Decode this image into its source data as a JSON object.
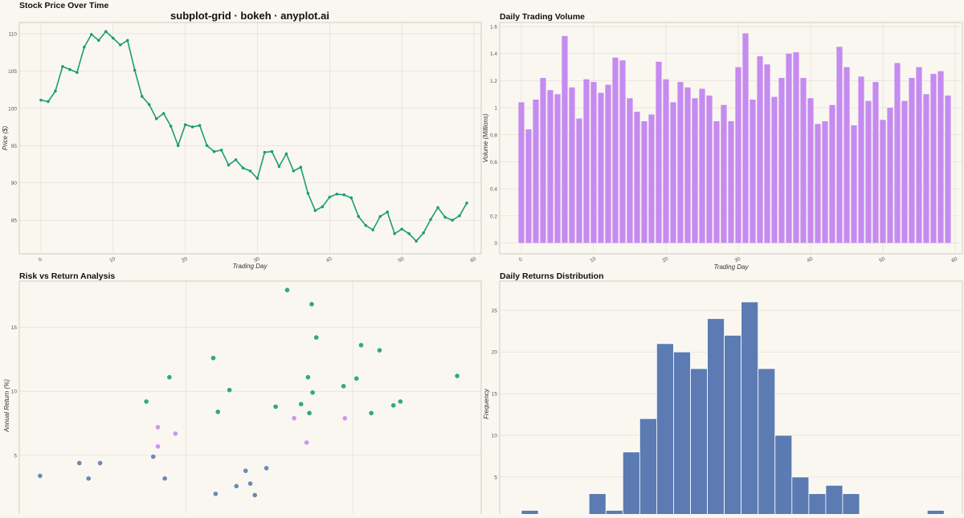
{
  "suptitle": "subplot-grid · bokeh · anyplot.ai",
  "colors": {
    "primary": "#1a9e76",
    "secondary": "#c58bf0",
    "tertiary": "#5b7bb2",
    "background": "#faf7f0"
  },
  "chart_data": [
    {
      "type": "line",
      "title": "Stock Price Over Time",
      "xlabel": "Trading Day",
      "ylabel": "Price ($)",
      "xlim": [
        -3,
        61
      ],
      "ylim": [
        80.5,
        111.5
      ],
      "xticks": [
        0,
        10,
        20,
        30,
        40,
        50,
        60
      ],
      "yticks": [
        85,
        90,
        95,
        100,
        105,
        110
      ],
      "x": [
        0,
        1,
        2,
        3,
        4,
        5,
        6,
        7,
        8,
        9,
        10,
        11,
        12,
        13,
        14,
        15,
        16,
        17,
        18,
        19,
        20,
        21,
        22,
        23,
        24,
        25,
        26,
        27,
        28,
        29,
        30,
        31,
        32,
        33,
        34,
        35,
        36,
        37,
        38,
        39,
        40,
        41,
        42,
        43,
        44,
        45,
        46,
        47,
        48,
        49,
        50,
        51,
        52,
        53,
        54,
        55,
        56,
        57,
        58,
        59
      ],
      "y": [
        101.1,
        100.9,
        102.3,
        105.6,
        105.2,
        104.8,
        108.2,
        109.9,
        109.1,
        110.3,
        109.4,
        108.5,
        109.1,
        105.1,
        101.6,
        100.5,
        98.6,
        99.3,
        97.6,
        95.0,
        97.8,
        97.5,
        97.7,
        95.0,
        94.2,
        94.4,
        92.4,
        93.1,
        92.0,
        91.6,
        90.6,
        94.1,
        94.2,
        92.2,
        93.9,
        91.6,
        92.1,
        88.6,
        86.3,
        86.8,
        88.1,
        88.5,
        88.4,
        88.0,
        85.5,
        84.3,
        83.7,
        85.5,
        86.1,
        83.2,
        83.8,
        83.2,
        82.2,
        83.3,
        85.1,
        86.7,
        85.4,
        85.0,
        85.6,
        87.3
      ]
    },
    {
      "type": "bar",
      "title": "Daily Trading Volume",
      "xlabel": "Trading Day",
      "ylabel": "Volume (Millions)",
      "xlim": [
        -3,
        61
      ],
      "ylim": [
        -0.08,
        1.63
      ],
      "xticks": [
        0,
        10,
        20,
        30,
        40,
        50,
        60
      ],
      "yticks": [
        0,
        0.2,
        0.4,
        0.6,
        0.8,
        1,
        1.2,
        1.4,
        1.6
      ],
      "x": [
        0,
        1,
        2,
        3,
        4,
        5,
        6,
        7,
        8,
        9,
        10,
        11,
        12,
        13,
        14,
        15,
        16,
        17,
        18,
        19,
        20,
        21,
        22,
        23,
        24,
        25,
        26,
        27,
        28,
        29,
        30,
        31,
        32,
        33,
        34,
        35,
        36,
        37,
        38,
        39,
        40,
        41,
        42,
        43,
        44,
        45,
        46,
        47,
        48,
        49,
        50,
        51,
        52,
        53,
        54,
        55,
        56,
        57,
        58,
        59
      ],
      "values": [
        1.04,
        0.84,
        1.06,
        1.22,
        1.13,
        1.1,
        1.53,
        1.15,
        0.92,
        1.21,
        1.19,
        1.11,
        1.17,
        1.37,
        1.35,
        1.07,
        0.97,
        0.9,
        0.95,
        1.34,
        1.21,
        1.04,
        1.19,
        1.15,
        1.07,
        1.14,
        1.09,
        0.9,
        1.02,
        0.9,
        1.3,
        1.55,
        1.06,
        1.38,
        1.32,
        1.08,
        1.22,
        1.4,
        1.41,
        1.22,
        1.07,
        0.88,
        0.9,
        1.02,
        1.45,
        1.3,
        0.87,
        1.23,
        1.05,
        1.19,
        0.91,
        1.0,
        1.33,
        1.05,
        1.22,
        1.3,
        1.1,
        1.25,
        1.27,
        1.09
      ]
    },
    {
      "type": "scatter",
      "title": "Risk vs Return Analysis",
      "xlabel": "",
      "ylabel": "Annual Return (%)",
      "xlim": [
        0,
        1
      ],
      "ylim": [
        -0.2,
        18.6
      ],
      "yticks": [
        5,
        10,
        15
      ],
      "xgrid": [
        0.361,
        0.722
      ],
      "points": [
        {
          "x": 0.045,
          "y": 3.4,
          "c": "tertiary"
        },
        {
          "x": 0.13,
          "y": 4.4,
          "c": "tertiary"
        },
        {
          "x": 0.15,
          "y": 3.2,
          "c": "tertiary"
        },
        {
          "x": 0.175,
          "y": 4.4,
          "c": "tertiary"
        },
        {
          "x": 0.29,
          "y": 4.9,
          "c": "tertiary"
        },
        {
          "x": 0.315,
          "y": 3.2,
          "c": "tertiary"
        },
        {
          "x": 0.425,
          "y": 2.0,
          "c": "tertiary"
        },
        {
          "x": 0.47,
          "y": 2.6,
          "c": "tertiary"
        },
        {
          "x": 0.49,
          "y": 3.8,
          "c": "tertiary"
        },
        {
          "x": 0.5,
          "y": 2.8,
          "c": "tertiary"
        },
        {
          "x": 0.51,
          "y": 1.9,
          "c": "tertiary"
        },
        {
          "x": 0.535,
          "y": 4.0,
          "c": "tertiary"
        },
        {
          "x": 0.275,
          "y": 9.2,
          "c": "primary"
        },
        {
          "x": 0.325,
          "y": 11.1,
          "c": "primary"
        },
        {
          "x": 0.42,
          "y": 12.6,
          "c": "primary"
        },
        {
          "x": 0.43,
          "y": 8.4,
          "c": "primary"
        },
        {
          "x": 0.455,
          "y": 10.1,
          "c": "primary"
        },
        {
          "x": 0.555,
          "y": 8.8,
          "c": "primary"
        },
        {
          "x": 0.58,
          "y": 17.9,
          "c": "primary"
        },
        {
          "x": 0.61,
          "y": 9.0,
          "c": "primary"
        },
        {
          "x": 0.625,
          "y": 11.1,
          "c": "primary"
        },
        {
          "x": 0.628,
          "y": 8.3,
          "c": "primary"
        },
        {
          "x": 0.633,
          "y": 16.8,
          "c": "primary"
        },
        {
          "x": 0.635,
          "y": 9.9,
          "c": "primary"
        },
        {
          "x": 0.643,
          "y": 14.2,
          "c": "primary"
        },
        {
          "x": 0.702,
          "y": 10.4,
          "c": "primary"
        },
        {
          "x": 0.73,
          "y": 11.0,
          "c": "primary"
        },
        {
          "x": 0.74,
          "y": 13.6,
          "c": "primary"
        },
        {
          "x": 0.762,
          "y": 8.3,
          "c": "primary"
        },
        {
          "x": 0.78,
          "y": 13.2,
          "c": "primary"
        },
        {
          "x": 0.81,
          "y": 8.9,
          "c": "primary"
        },
        {
          "x": 0.825,
          "y": 9.2,
          "c": "primary"
        },
        {
          "x": 0.948,
          "y": 11.2,
          "c": "primary"
        },
        {
          "x": 0.3,
          "y": 7.2,
          "c": "secondary"
        },
        {
          "x": 0.3,
          "y": 5.7,
          "c": "secondary"
        },
        {
          "x": 0.338,
          "y": 6.7,
          "c": "secondary"
        },
        {
          "x": 0.595,
          "y": 7.9,
          "c": "secondary"
        },
        {
          "x": 0.622,
          "y": 6.0,
          "c": "secondary"
        },
        {
          "x": 0.705,
          "y": 7.9,
          "c": "secondary"
        }
      ]
    },
    {
      "type": "bar",
      "title": "Daily Returns Distribution",
      "xlabel": "",
      "ylabel": "Frequency",
      "ylim": [
        -0.4,
        28.5
      ],
      "yticks": [
        5,
        10,
        15,
        20,
        25
      ],
      "bins": 26,
      "values": [
        1,
        0,
        0,
        0,
        3,
        1,
        8,
        12,
        21,
        20,
        18,
        24,
        22,
        26,
        18,
        10,
        5,
        3,
        4,
        3,
        0,
        0,
        0,
        0,
        1
      ]
    }
  ]
}
